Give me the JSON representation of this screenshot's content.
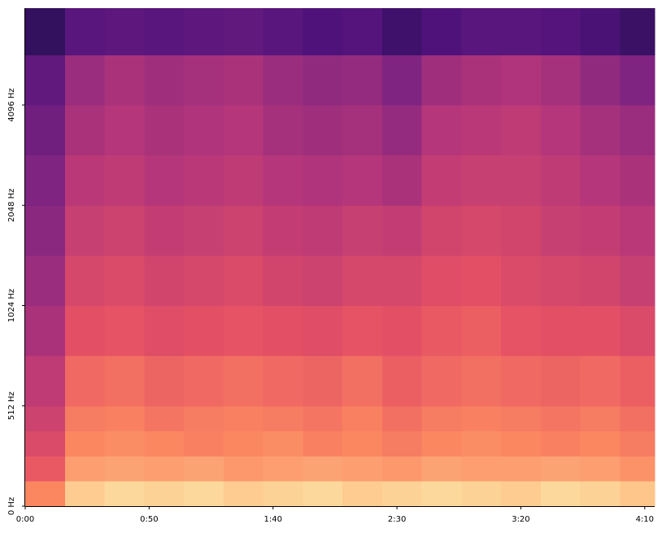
{
  "chart_data": {
    "type": "spectrogram",
    "x": [
      0,
      16,
      32,
      48,
      64,
      80,
      96,
      112,
      128,
      144,
      160,
      176,
      192,
      208,
      224,
      240
    ],
    "y": [
      0,
      128,
      256,
      384,
      512,
      724,
      1024,
      1448,
      2048,
      2896,
      4096,
      5793
    ],
    "values": [
      [
        -20,
        -8,
        -6,
        -7,
        -6,
        -8,
        -7,
        -6,
        -8,
        -7,
        -6,
        -7,
        -8,
        -6,
        -7,
        -9
      ],
      [
        -28,
        -16,
        -15,
        -16,
        -15,
        -17,
        -16,
        -15,
        -16,
        -17,
        -15,
        -16,
        -16,
        -15,
        -16,
        -18
      ],
      [
        -32,
        -20,
        -19,
        -20,
        -21,
        -20,
        -19,
        -21,
        -20,
        -22,
        -20,
        -19,
        -20,
        -21,
        -20,
        -22
      ],
      [
        -35,
        -22,
        -21,
        -23,
        -22,
        -21,
        -22,
        -23,
        -21,
        -24,
        -22,
        -21,
        -22,
        -23,
        -22,
        -24
      ],
      [
        -38,
        -25,
        -24,
        -26,
        -25,
        -24,
        -25,
        -26,
        -24,
        -27,
        -25,
        -24,
        -25,
        -26,
        -25,
        -27
      ],
      [
        -42,
        -30,
        -29,
        -31,
        -30,
        -29,
        -30,
        -31,
        -29,
        -30,
        -28,
        -27,
        -29,
        -30,
        -30,
        -32
      ],
      [
        -45,
        -33,
        -32,
        -34,
        -33,
        -32,
        -34,
        -35,
        -33,
        -33,
        -31,
        -30,
        -32,
        -33,
        -34,
        -36
      ],
      [
        -48,
        -36,
        -35,
        -37,
        -36,
        -35,
        -37,
        -38,
        -36,
        -37,
        -34,
        -33,
        -34,
        -36,
        -37,
        -39
      ],
      [
        -50,
        -39,
        -38,
        -40,
        -39,
        -38,
        -40,
        -41,
        -40,
        -42,
        -37,
        -36,
        -36,
        -38,
        -40,
        -42
      ],
      [
        -53,
        -42,
        -40,
        -42,
        -41,
        -40,
        -43,
        -44,
        -43,
        -46,
        -40,
        -39,
        -38,
        -40,
        -43,
        -45
      ],
      [
        -56,
        -45,
        -42,
        -44,
        -43,
        -42,
        -45,
        -47,
        -46,
        -50,
        -44,
        -42,
        -41,
        -43,
        -47,
        -50
      ],
      [
        -65,
        -58,
        -57,
        -58,
        -57,
        -56,
        -58,
        -60,
        -59,
        -63,
        -60,
        -58,
        -58,
        -59,
        -61,
        -64
      ]
    ],
    "clim": [
      -80,
      0
    ],
    "colormap": "magma",
    "xlim": [
      0,
      254
    ],
    "xticks": [
      {
        "value": 0,
        "label": "0:00"
      },
      {
        "value": 50,
        "label": "0:50"
      },
      {
        "value": 100,
        "label": "1:40"
      },
      {
        "value": 150,
        "label": "2:30"
      },
      {
        "value": 200,
        "label": "3:20"
      },
      {
        "value": 250,
        "label": "4:10"
      }
    ],
    "ylim": [
      0,
      8000
    ],
    "yscale": "symlog",
    "linthresh": 512,
    "base": 2,
    "yticks": [
      {
        "value": 0,
        "label": "0 Hz"
      },
      {
        "value": 512,
        "label": "512 Hz"
      },
      {
        "value": 1024,
        "label": "1024 Hz"
      },
      {
        "value": 2048,
        "label": "2048 Hz"
      },
      {
        "value": 4096,
        "label": "4096 Hz"
      }
    ]
  }
}
